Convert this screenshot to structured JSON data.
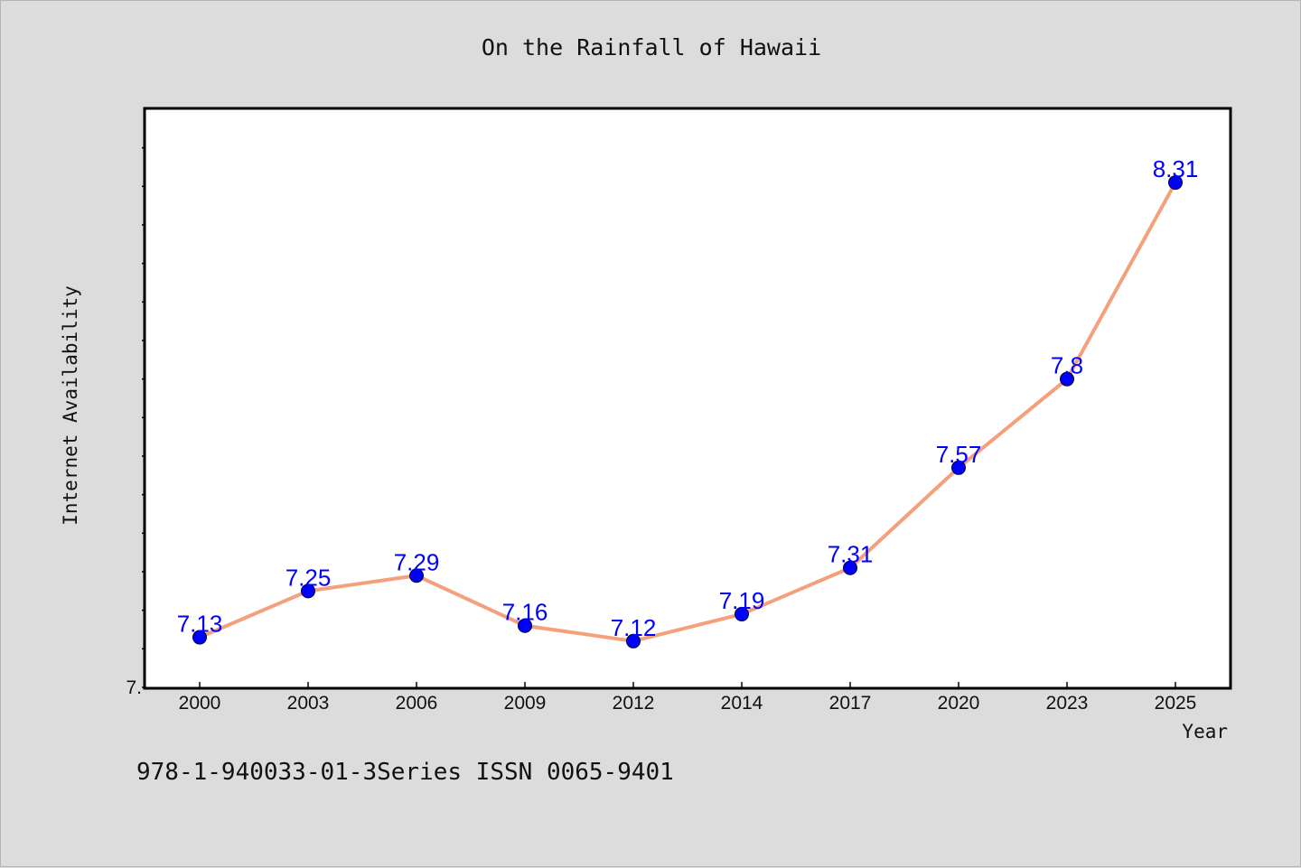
{
  "chart_data": {
    "type": "line",
    "title": "On the Rainfall of Hawaii",
    "xlabel": "Year",
    "ylabel": "Internet Availability",
    "categories": [
      "2000",
      "2003",
      "2006",
      "2009",
      "2012",
      "2014",
      "2017",
      "2020",
      "2023",
      "2025"
    ],
    "series": [
      {
        "values": [
          7.13,
          7.25,
          7.29,
          7.16,
          7.12,
          7.19,
          7.31,
          7.57,
          7.8,
          8.31
        ],
        "data_labels": [
          "7.13",
          "7.25",
          "7.29",
          "7.16",
          "7.12",
          "7.19",
          "7.31",
          "7.57",
          "7.8",
          "8.31"
        ],
        "line_color": "#f4a07c",
        "marker_color": "#0000ff"
      }
    ],
    "ylim": [
      7.0,
      8.5
    ],
    "y_tick_labels": [
      {
        "value": 7.0,
        "label": "7."
      }
    ],
    "grid": false,
    "label_color": "#0000ff",
    "plot_background": "#ffffff",
    "figure_background": "#dcdcdc"
  },
  "footer_text": "978-1-940033-01-3Series ISSN 0065-9401"
}
